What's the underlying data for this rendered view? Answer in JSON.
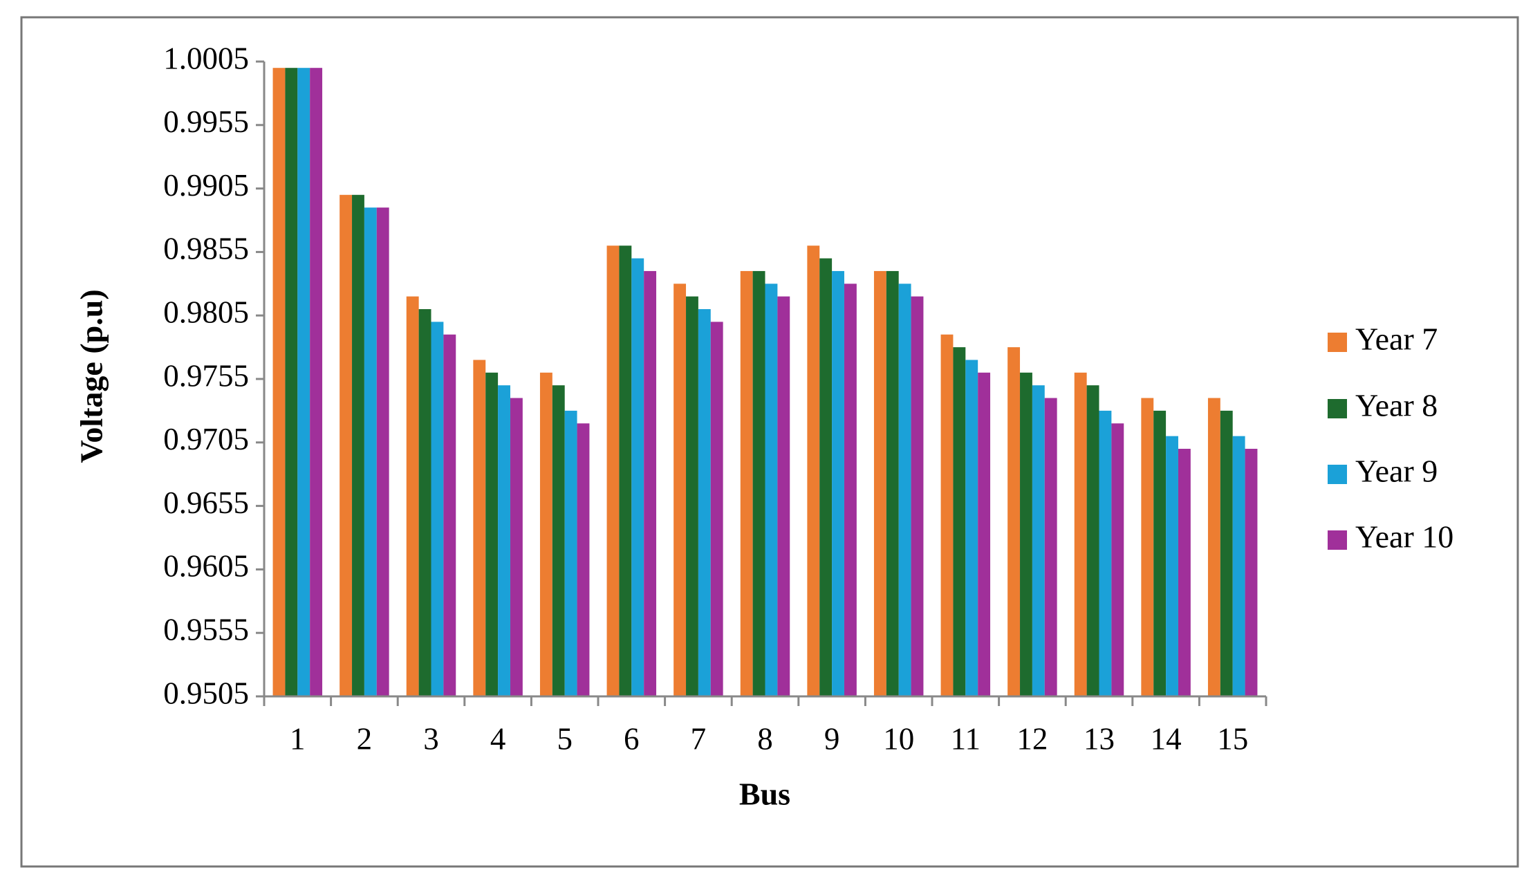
{
  "chart_data": {
    "type": "bar",
    "y_label": "Voltage (p.u)",
    "x_label": "Bus",
    "categories": [
      "1",
      "2",
      "3",
      "4",
      "5",
      "6",
      "7",
      "8",
      "9",
      "10",
      "11",
      "12",
      "13",
      "14",
      "15"
    ],
    "series": [
      {
        "name": "Year 7",
        "color": "#ED7D31",
        "values": [
          1.0,
          0.99,
          0.982,
          0.977,
          0.976,
          0.986,
          0.983,
          0.984,
          0.986,
          0.984,
          0.979,
          0.978,
          0.976,
          0.974,
          0.974
        ]
      },
      {
        "name": "Year 8",
        "color": "#1E6B2E",
        "values": [
          1.0,
          0.99,
          0.981,
          0.976,
          0.975,
          0.986,
          0.982,
          0.984,
          0.985,
          0.984,
          0.978,
          0.976,
          0.975,
          0.973,
          0.973
        ]
      },
      {
        "name": "Year 9",
        "color": "#1BA1D8",
        "values": [
          1.0,
          0.989,
          0.98,
          0.975,
          0.973,
          0.985,
          0.981,
          0.983,
          0.984,
          0.983,
          0.977,
          0.975,
          0.973,
          0.971,
          0.971
        ]
      },
      {
        "name": "Year 10",
        "color": "#A0309A",
        "values": [
          1.0,
          0.989,
          0.979,
          0.974,
          0.972,
          0.984,
          0.98,
          0.982,
          0.983,
          0.982,
          0.976,
          0.974,
          0.972,
          0.97,
          0.97
        ]
      }
    ],
    "ylim": [
      0.9505,
      1.0005
    ],
    "yticks": [
      0.9505,
      0.9555,
      0.9605,
      0.9655,
      0.9705,
      0.9755,
      0.9805,
      0.9855,
      0.9905,
      0.9955,
      1.0005
    ],
    "grid": false,
    "legend": "right"
  }
}
